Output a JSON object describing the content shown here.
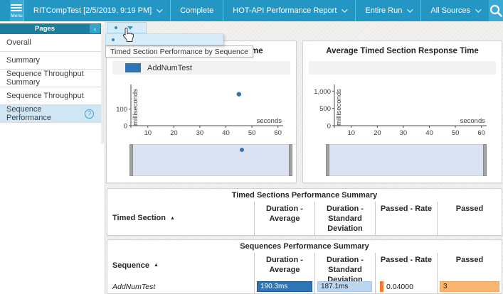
{
  "topbar": {
    "menu_label": "Menu",
    "items": [
      {
        "label": "RITCompTest [2/5/2019, 9:19 PM]",
        "dropdown": true
      },
      {
        "label": "Complete",
        "dropdown": false
      },
      {
        "label": "HOT-API Performance Report",
        "dropdown": true
      },
      {
        "label": "Entire Run",
        "dropdown": true
      },
      {
        "label": "All Sources",
        "dropdown": true
      }
    ]
  },
  "sidebar": {
    "header": "Pages",
    "items": [
      {
        "label": "Overall",
        "selected": false
      },
      {
        "label": "Summary",
        "selected": false
      },
      {
        "label": "Sequence Throughput Summary",
        "selected": false
      },
      {
        "label": "Sequence Throughput",
        "selected": false
      },
      {
        "label": "Sequence Performance",
        "selected": true,
        "help": true
      }
    ]
  },
  "icons": {
    "help": "?",
    "collapse": "‹",
    "sort_asc": "▲"
  },
  "overlay": {
    "tooltip": "Timed Section Performance by Sequence"
  },
  "charts": {
    "left": {
      "title_visible": "onse Time",
      "legend_label": "AddNumTest"
    },
    "right": {
      "title": "Average Timed Section Response Time"
    }
  },
  "colors": {
    "accent_blue": "#2e75b6",
    "light_blue": "#bcd6ee",
    "orange": "#ed7d31",
    "light_orange": "#f9b571",
    "topbar": "#2496c4"
  },
  "chart_data": [
    {
      "type": "scatter",
      "title_visible": "onse Time",
      "xlabel": "seconds",
      "ylabel": "milliseconds",
      "xticks": [
        10,
        20,
        30,
        40,
        50,
        60
      ],
      "yticks": [
        0,
        100
      ],
      "ytick_labels": [
        "0",
        "100"
      ],
      "xlim": [
        3.5,
        62
      ],
      "ylim": [
        0,
        240
      ],
      "legend": [
        "AddNumTest"
      ],
      "series": [
        {
          "name": "AddNumTest",
          "color": "#2e75b6",
          "points": [
            {
              "x": 45,
              "y": 190
            }
          ]
        }
      ]
    },
    {
      "type": "scatter",
      "title": "Average Timed Section Response Time",
      "xlabel": "seconds",
      "ylabel": "milliseconds",
      "xticks": [
        10,
        20,
        30,
        40,
        50,
        60
      ],
      "yticks": [
        0,
        500,
        1000
      ],
      "ytick_labels": [
        "0",
        "500",
        "1,000"
      ],
      "xlim": [
        3.5,
        62
      ],
      "ylim": [
        0,
        1150
      ],
      "legend": [],
      "series": []
    }
  ],
  "tables": [
    {
      "title": "Timed Sections Performance Summary",
      "columns": [
        "Timed Section",
        "Duration - Average",
        "Duration - Standard Deviation",
        "Passed - Rate",
        "Passed"
      ],
      "rows": []
    },
    {
      "title": "Sequences Performance Summary",
      "columns": [
        "Sequence",
        "Duration - Average",
        "Duration - Standard Deviation",
        "Passed - Rate",
        "Passed"
      ],
      "rows": [
        {
          "name": "AddNumTest",
          "duration_avg": "190.3ms",
          "duration_std": "187.1ms",
          "passed_rate": "0.04000",
          "passed": "3"
        }
      ]
    }
  ]
}
